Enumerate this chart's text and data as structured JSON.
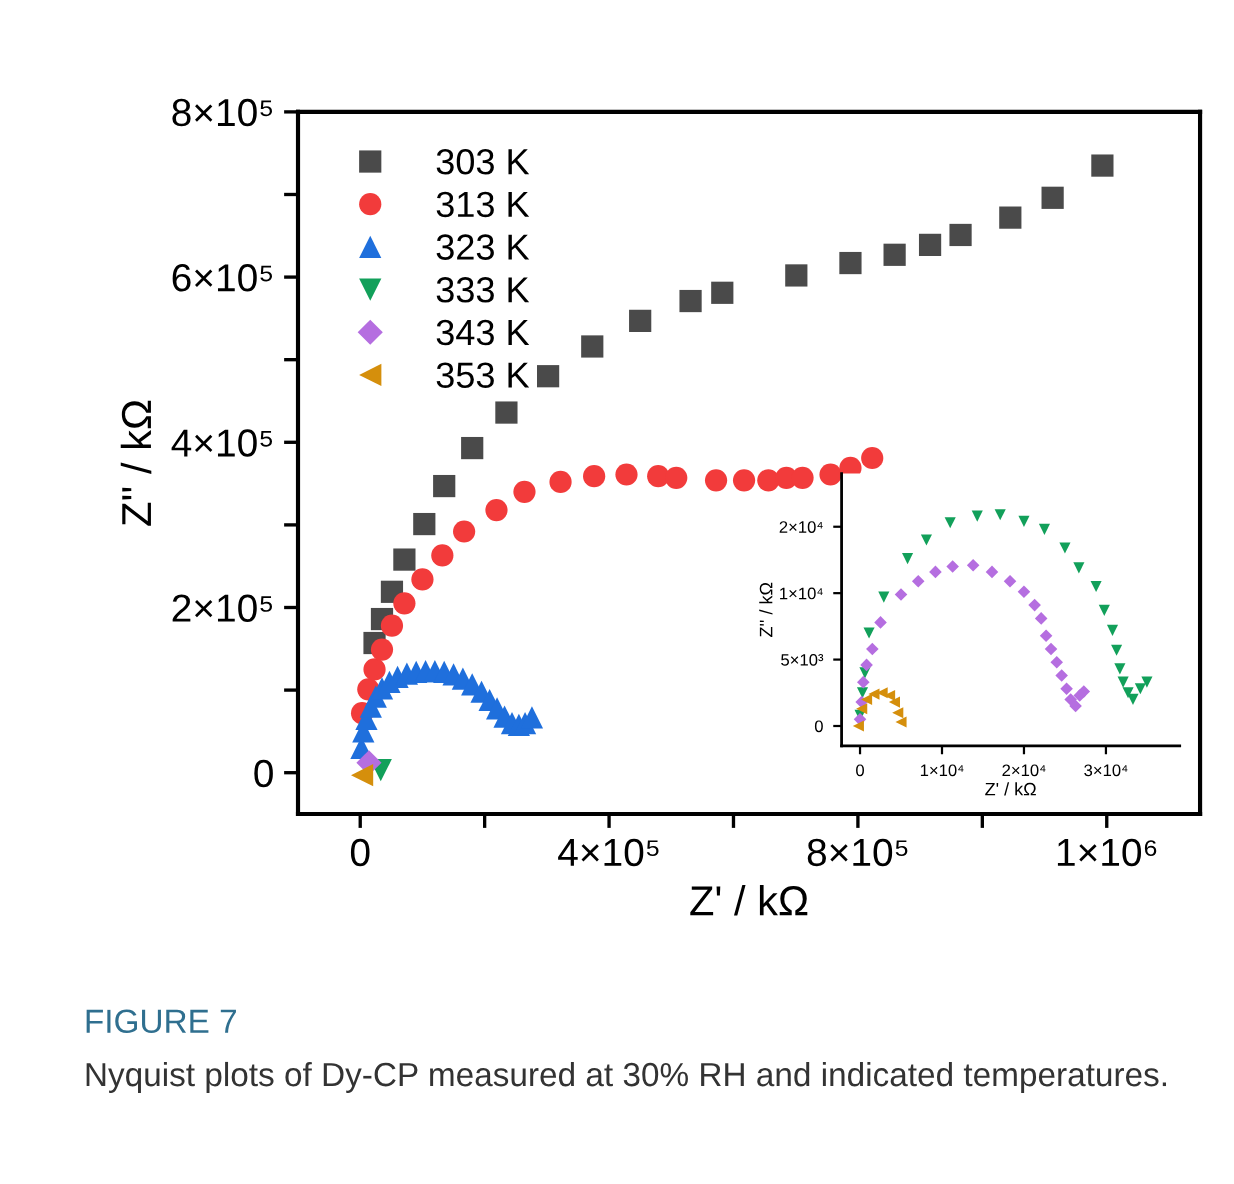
{
  "chart_data": [
    {
      "type": "scatter",
      "xlabel": "Z' / kΩ",
      "ylabel": "Z'' / kΩ",
      "legend": "top left",
      "grid": false,
      "xlim": [
        -100000,
        1350000
      ],
      "ylim": [
        -50000,
        800000
      ],
      "xticks": [
        0,
        {
          "value": 200000,
          "label": null
        },
        {
          "value": 400000,
          "label": "4×10⁵"
        },
        {
          "value": 600000,
          "label": null
        },
        {
          "value": 800000,
          "label": "8×10⁵"
        },
        {
          "value": 1000000,
          "label": null
        },
        {
          "value": 1200000,
          "label": "1×10⁶"
        }
      ],
      "yticks": [
        0,
        {
          "value": 100000,
          "label": null
        },
        {
          "value": 200000,
          "label": "2×10⁵"
        },
        {
          "value": 300000,
          "label": null
        },
        {
          "value": 400000,
          "label": "4×10⁵"
        },
        {
          "value": 500000,
          "label": null
        },
        {
          "value": 600000,
          "label": "6×10⁵"
        },
        {
          "value": 700000,
          "label": null
        },
        {
          "value": 800000,
          "label": "8×10⁵"
        }
      ],
      "annotations": [
        "FIGURE 7",
        "Nyquist plots of Dy-CP measured at 30% RH and indicated temperatures."
      ],
      "series": [
        {
          "name": "303 K",
          "color": "#4a4a4a",
          "marker": "square",
          "x": [
            23000,
            35000,
            51000,
            71000,
            103000,
            135000,
            180000,
            235000,
            302000,
            373000,
            450000,
            531000,
            582000,
            701000,
            788000,
            859000,
            916000,
            965000,
            1045000,
            1113000,
            1193000
          ],
          "values": [
            157000,
            186000,
            219000,
            258000,
            301000,
            347000,
            393000,
            436000,
            480000,
            516000,
            547000,
            571000,
            581000,
            602000,
            617000,
            627000,
            639000,
            651000,
            672000,
            696000,
            735000
          ]
        },
        {
          "name": "313 K",
          "color": "#f23b3b",
          "marker": "circle",
          "x": [
            3000,
            13000,
            23000,
            35000,
            51000,
            71000,
            100000,
            132000,
            167000,
            219000,
            264000,
            322000,
            376000,
            428000,
            479000,
            508000,
            572000,
            617000,
            656000,
            685000,
            711000,
            756000,
            788000,
            823000
          ],
          "values": [
            72000,
            101000,
            125000,
            149000,
            178000,
            205000,
            234000,
            263000,
            292000,
            318000,
            340000,
            352000,
            359000,
            361000,
            359000,
            357000,
            354000,
            354000,
            354000,
            357000,
            357000,
            361000,
            369000,
            381000
          ]
        },
        {
          "name": "323 K",
          "color": "#1f6fdc",
          "marker": "triangle",
          "x": [
            2000,
            5000,
            10000,
            17000,
            25000,
            35000,
            47000,
            60000,
            75000,
            90000,
            105000,
            120000,
            135000,
            150000,
            165000,
            180000,
            195000,
            208000,
            220000,
            232000,
            244000,
            255000,
            265000,
            276000
          ],
          "values": [
            30000,
            50000,
            65000,
            80000,
            92000,
            102000,
            110000,
            116000,
            120000,
            122000,
            123000,
            123000,
            122000,
            119000,
            114000,
            107000,
            98000,
            88000,
            78000,
            68000,
            60000,
            58000,
            60000,
            67000
          ]
        },
        {
          "name": "333 K",
          "color": "#12a05a",
          "marker": "triangle-down",
          "x": [
            33000
          ],
          "values": [
            3000
          ]
        },
        {
          "name": "343 K",
          "color": "#b56ee0",
          "marker": "diamond",
          "x": [
            14000
          ],
          "values": [
            12000
          ]
        },
        {
          "name": "353 K",
          "color": "#d58f0c",
          "marker": "triangle-left",
          "x": [
            3000
          ],
          "values": [
            -3000
          ]
        }
      ]
    },
    {
      "type": "scatter",
      "xlabel": "Z' / kΩ",
      "ylabel": "Z'' / kΩ",
      "grid": false,
      "xlim": [
        -2250,
        39000
      ],
      "ylim": [
        -1500,
        19000
      ],
      "xticks": [
        0,
        {
          "value": 10000,
          "label": "1×10⁴"
        },
        {
          "value": 20000,
          "label": "2×10⁴"
        },
        {
          "value": 30000,
          "label": "3×10⁴"
        }
      ],
      "yticks": [
        0,
        {
          "value": 5000,
          "label": "5×10³"
        },
        {
          "value": 10000,
          "label": "1×10⁴"
        },
        {
          "value": 15000,
          "label": "2×10⁴"
        }
      ],
      "series": [
        {
          "color": "#12a05a",
          "marker": "triangle-down",
          "x": [
            0,
            300,
            600,
            1100,
            2900,
            5800,
            8100,
            11000,
            14300,
            17100,
            20000,
            22500,
            25000,
            26700,
            28800,
            29800,
            30800,
            31300,
            31700,
            32100,
            32700,
            33300,
            34200,
            35000
          ],
          "values": [
            800,
            2500,
            4000,
            7000,
            9700,
            12600,
            14000,
            15300,
            15800,
            15900,
            15400,
            14800,
            13400,
            11900,
            10500,
            8700,
            7200,
            5700,
            4300,
            3300,
            2500,
            2000,
            2800,
            3300
          ]
        },
        {
          "color": "#b56ee0",
          "marker": "diamond",
          "x": [
            0,
            200,
            400,
            800,
            1500,
            2500,
            5000,
            7100,
            9200,
            11300,
            13800,
            16100,
            18300,
            20000,
            21300,
            22100,
            22700,
            23300,
            24000,
            24600,
            25200,
            25700,
            26300,
            26800,
            27300
          ],
          "values": [
            500,
            1800,
            3300,
            4600,
            5800,
            7800,
            9900,
            10900,
            11600,
            12000,
            12100,
            11600,
            10900,
            10100,
            9100,
            8100,
            6800,
            5800,
            4800,
            3800,
            2800,
            2000,
            1500,
            2300,
            2600
          ]
        },
        {
          "color": "#d58f0c",
          "marker": "triangle-left",
          "x": [
            -200,
            200,
            800,
            1700,
            2700,
            3600,
            4200,
            4600,
            5000
          ],
          "values": [
            0,
            1300,
            2000,
            2400,
            2500,
            2300,
            1800,
            1000,
            300
          ]
        }
      ]
    }
  ]
}
